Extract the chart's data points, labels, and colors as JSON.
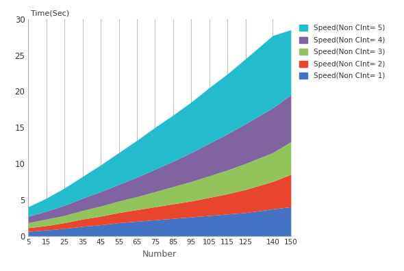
{
  "x": [
    5,
    15,
    25,
    35,
    45,
    55,
    65,
    75,
    85,
    95,
    105,
    115,
    125,
    140,
    150
  ],
  "speed1": [
    0.6,
    0.8,
    1.0,
    1.3,
    1.5,
    1.8,
    2.0,
    2.2,
    2.4,
    2.6,
    2.8,
    3.0,
    3.2,
    3.7,
    4.0
  ],
  "speed2": [
    0.5,
    0.6,
    0.8,
    1.0,
    1.2,
    1.4,
    1.6,
    1.8,
    2.0,
    2.2,
    2.5,
    2.8,
    3.2,
    3.8,
    4.5
  ],
  "speed3": [
    0.7,
    0.9,
    1.0,
    1.2,
    1.4,
    1.6,
    1.8,
    2.1,
    2.4,
    2.7,
    3.0,
    3.3,
    3.6,
    4.0,
    4.5
  ],
  "speed4": [
    0.9,
    1.1,
    1.4,
    1.7,
    2.0,
    2.3,
    2.7,
    3.1,
    3.5,
    4.0,
    4.5,
    5.0,
    5.5,
    6.2,
    6.5
  ],
  "speed5": [
    1.3,
    1.8,
    2.4,
    3.0,
    3.7,
    4.4,
    5.1,
    5.8,
    6.4,
    7.0,
    7.7,
    8.3,
    9.0,
    10.0,
    9.0
  ],
  "colors": [
    "#4472C4",
    "#E8452C",
    "#93C45C",
    "#8064A2",
    "#22BCCE"
  ],
  "labels": [
    "Speed(Non CInt= 1)",
    "Speed(Non CInt= 2)",
    "Speed(Non CInt= 3)",
    "Speed(Non CInt= 4)",
    "Speed(Non CInt= 5)"
  ],
  "xlabel": "Number",
  "ylabel": "Time(Sec)",
  "ylim": [
    0,
    30
  ],
  "yticks": [
    0,
    5,
    10,
    15,
    20,
    25,
    30
  ],
  "xtick_labels": [
    "5",
    "15",
    "25",
    "35",
    "45",
    "55",
    "65",
    "75",
    "85",
    "95",
    "105",
    "115",
    "125",
    "140",
    "150"
  ],
  "background_color": "#FFFFFF",
  "grid_color": "#C0C0C0",
  "xlabel_color": "#595959"
}
